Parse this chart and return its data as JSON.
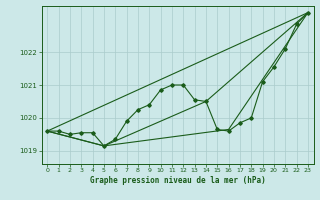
{
  "background_color": "#cce8e8",
  "grid_color": "#aacccc",
  "line_color": "#1a5c1a",
  "xlabel": "Graphe pression niveau de la mer (hPa)",
  "xlim": [
    -0.5,
    23.5
  ],
  "ylim": [
    1018.6,
    1023.4
  ],
  "yticks": [
    1019,
    1020,
    1021,
    1022
  ],
  "xticks": [
    0,
    1,
    2,
    3,
    4,
    5,
    6,
    7,
    8,
    9,
    10,
    11,
    12,
    13,
    14,
    15,
    16,
    17,
    18,
    19,
    20,
    21,
    22,
    23
  ],
  "line1_x": [
    0,
    23
  ],
  "line1_y": [
    1019.6,
    1023.2
  ],
  "line2_x": [
    0,
    5,
    14,
    23
  ],
  "line2_y": [
    1019.6,
    1019.15,
    1020.5,
    1023.2
  ],
  "line3_x": [
    0,
    5,
    16,
    23
  ],
  "line3_y": [
    1019.6,
    1019.15,
    1019.65,
    1023.2
  ],
  "detailed_x": [
    0,
    1,
    2,
    3,
    4,
    5,
    6,
    7,
    8,
    9,
    10,
    11,
    12,
    13,
    14,
    15,
    16,
    17,
    18,
    19,
    20,
    21,
    22,
    23
  ],
  "detailed_y": [
    1019.6,
    1019.6,
    1019.5,
    1019.55,
    1019.55,
    1019.15,
    1019.35,
    1019.9,
    1020.25,
    1020.4,
    1020.85,
    1021.0,
    1021.0,
    1020.55,
    1020.5,
    1019.65,
    1019.6,
    1019.85,
    1020.0,
    1021.1,
    1021.55,
    1022.1,
    1022.85,
    1023.2
  ]
}
